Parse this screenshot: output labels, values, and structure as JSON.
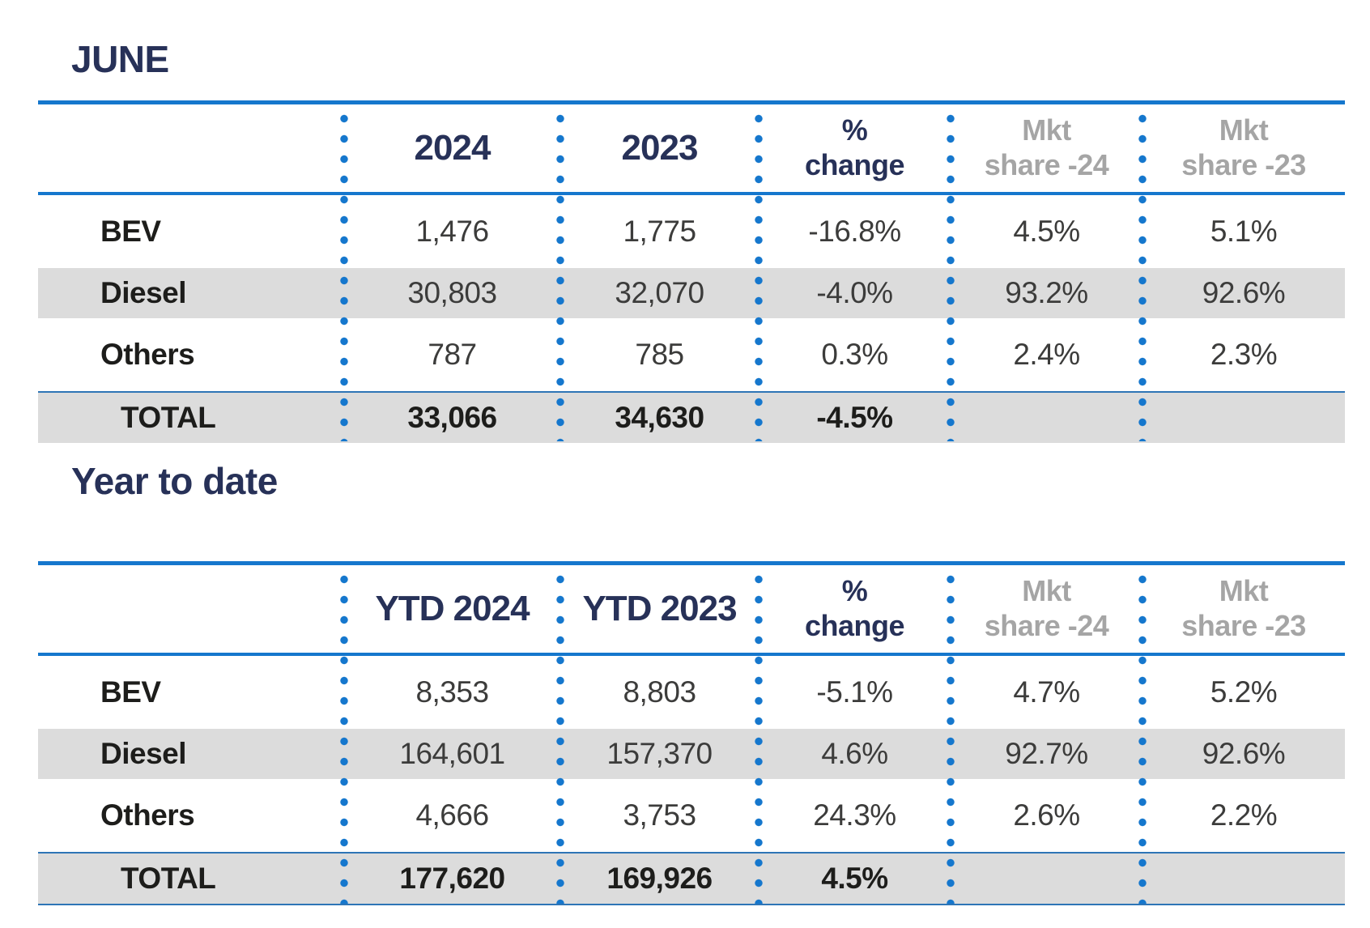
{
  "colors": {
    "accent_blue": "#1577cd",
    "thin_blue": "#2e75b6",
    "navy": "#273158",
    "gray_text": "#a5a5a5",
    "row_gray": "#dcdcdc",
    "label_black": "#1d1d1b",
    "value_gray": "#3c3c3b",
    "page_bg": "#ffffff"
  },
  "tables": [
    {
      "title": "JUNE",
      "header": {
        "col1": "2024",
        "col2": "2023",
        "col3_line1": "%",
        "col3_line2": "change",
        "col4_line1": "Mkt",
        "col4_line2": "share -24",
        "col5_line1": "Mkt",
        "col5_line2": "share -23"
      },
      "rows": [
        {
          "label": "BEV",
          "y1": "1,476",
          "y2": "1,775",
          "pct_change": "-16.8%",
          "mkt_share_24": "4.5%",
          "mkt_share_23": "5.1%"
        },
        {
          "label": "Diesel",
          "y1": "30,803",
          "y2": "32,070",
          "pct_change": "-4.0%",
          "mkt_share_24": "93.2%",
          "mkt_share_23": "92.6%"
        },
        {
          "label": "Others",
          "y1": "787",
          "y2": "785",
          "pct_change": "0.3%",
          "mkt_share_24": "2.4%",
          "mkt_share_23": "2.3%"
        }
      ],
      "total": {
        "label": "TOTAL",
        "y1": "33,066",
        "y2": "34,630",
        "pct_change": "-4.5%",
        "mkt_share_24": "",
        "mkt_share_23": ""
      }
    },
    {
      "title": "Year to date",
      "header": {
        "col1": "YTD 2024",
        "col2": "YTD 2023",
        "col3_line1": "%",
        "col3_line2": "change",
        "col4_line1": "Mkt",
        "col4_line2": "share -24",
        "col5_line1": "Mkt",
        "col5_line2": "share -23"
      },
      "rows": [
        {
          "label": "BEV",
          "y1": "8,353",
          "y2": "8,803",
          "pct_change": "-5.1%",
          "mkt_share_24": "4.7%",
          "mkt_share_23": "5.2%"
        },
        {
          "label": "Diesel",
          "y1": "164,601",
          "y2": "157,370",
          "pct_change": "4.6%",
          "mkt_share_24": "92.7%",
          "mkt_share_23": "92.6%"
        },
        {
          "label": "Others",
          "y1": "4,666",
          "y2": "3,753",
          "pct_change": "24.3%",
          "mkt_share_24": "2.6%",
          "mkt_share_23": "2.2%"
        }
      ],
      "total": {
        "label": "TOTAL",
        "y1": "177,620",
        "y2": "169,926",
        "pct_change": "4.5%",
        "mkt_share_24": "",
        "mkt_share_23": ""
      }
    }
  ],
  "chart_data": [
    {
      "type": "table",
      "title": "JUNE",
      "columns": [
        "",
        "2024",
        "2023",
        "% change",
        "Mkt share -24",
        "Mkt share -23"
      ],
      "rows": [
        [
          "BEV",
          1476,
          1775,
          "-16.8%",
          "4.5%",
          "5.1%"
        ],
        [
          "Diesel",
          30803,
          32070,
          "-4.0%",
          "93.2%",
          "92.6%"
        ],
        [
          "Others",
          787,
          785,
          "0.3%",
          "2.4%",
          "2.3%"
        ],
        [
          "TOTAL",
          33066,
          34630,
          "-4.5%",
          "",
          ""
        ]
      ]
    },
    {
      "type": "table",
      "title": "Year to date",
      "columns": [
        "",
        "YTD 2024",
        "YTD 2023",
        "% change",
        "Mkt share -24",
        "Mkt share -23"
      ],
      "rows": [
        [
          "BEV",
          8353,
          8803,
          "-5.1%",
          "4.7%",
          "5.2%"
        ],
        [
          "Diesel",
          164601,
          157370,
          "4.6%",
          "92.7%",
          "92.6%"
        ],
        [
          "Others",
          4666,
          3753,
          "24.3%",
          "2.6%",
          "2.2%"
        ],
        [
          "TOTAL",
          177620,
          169926,
          "4.5%",
          "",
          ""
        ]
      ]
    }
  ]
}
